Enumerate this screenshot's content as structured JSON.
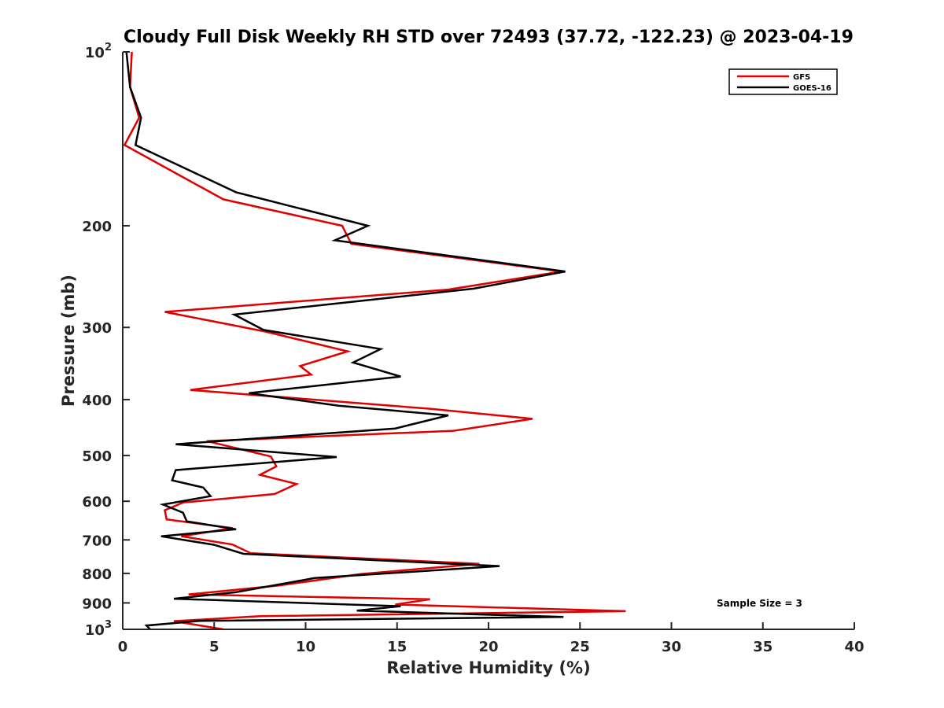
{
  "chart_data": {
    "type": "line",
    "title": "Cloudy Full Disk Weekly RH STD over 72493 (37.72, -122.23) @ 2023-04-19",
    "xlabel": "Relative Humidity (%)",
    "ylabel": "Pressure (mb)",
    "xlim": [
      0,
      40
    ],
    "ylim": [
      100,
      1000
    ],
    "y_scale": "log",
    "y_reversed": true,
    "xticks": [
      0,
      5,
      10,
      15,
      20,
      25,
      30,
      35,
      40
    ],
    "yticks": [
      {
        "value": 100,
        "label": "10",
        "sup": "2"
      },
      {
        "value": 200,
        "label": "200",
        "sup": ""
      },
      {
        "value": 300,
        "label": "300",
        "sup": ""
      },
      {
        "value": 400,
        "label": "400",
        "sup": ""
      },
      {
        "value": 500,
        "label": "500",
        "sup": ""
      },
      {
        "value": 600,
        "label": "600",
        "sup": ""
      },
      {
        "value": 700,
        "label": "700",
        "sup": ""
      },
      {
        "value": 800,
        "label": "800",
        "sup": ""
      },
      {
        "value": 900,
        "label": "900",
        "sup": ""
      },
      {
        "value": 1000,
        "label": "10",
        "sup": "3"
      }
    ],
    "grid": false,
    "legend_position": "top-right",
    "annotation": "Sample Size = 3",
    "series": [
      {
        "name": "GFS",
        "color": "#e00000",
        "points": [
          [
            0.5,
            100
          ],
          [
            0.4,
            115
          ],
          [
            0.9,
            130
          ],
          [
            0.1,
            145
          ],
          [
            5.5,
            180
          ],
          [
            12.0,
            200
          ],
          [
            12.5,
            215
          ],
          [
            24.0,
            240
          ],
          [
            17.8,
            258
          ],
          [
            2.3,
            282
          ],
          [
            7.8,
            305
          ],
          [
            12.3,
            330
          ],
          [
            9.7,
            350
          ],
          [
            10.3,
            362
          ],
          [
            3.7,
            385
          ],
          [
            16.8,
            415
          ],
          [
            22.4,
            432
          ],
          [
            18.1,
            453
          ],
          [
            4.6,
            472
          ],
          [
            8.1,
            502
          ],
          [
            8.4,
            522
          ],
          [
            7.5,
            540
          ],
          [
            9.5,
            560
          ],
          [
            8.3,
            583
          ],
          [
            3.3,
            603
          ],
          [
            2.3,
            622
          ],
          [
            2.4,
            645
          ],
          [
            6.0,
            668
          ],
          [
            3.2,
            690
          ],
          [
            6.0,
            713
          ],
          [
            7.0,
            738
          ],
          [
            19.5,
            770
          ],
          [
            13.0,
            802
          ],
          [
            8.5,
            840
          ],
          [
            3.6,
            870
          ],
          [
            16.8,
            887
          ],
          [
            14.9,
            906
          ],
          [
            27.5,
            930
          ],
          [
            7.5,
            949
          ],
          [
            2.8,
            968
          ],
          [
            5.5,
            1000
          ]
        ]
      },
      {
        "name": "GOES-16",
        "color": "#000000",
        "points": [
          [
            0.2,
            100
          ],
          [
            0.4,
            115
          ],
          [
            1.0,
            130
          ],
          [
            0.7,
            145
          ],
          [
            6.2,
            175
          ],
          [
            13.4,
            200
          ],
          [
            11.6,
            212
          ],
          [
            24.2,
            240
          ],
          [
            19.2,
            257
          ],
          [
            6.1,
            285
          ],
          [
            7.7,
            303
          ],
          [
            14.1,
            327
          ],
          [
            12.6,
            345
          ],
          [
            15.2,
            365
          ],
          [
            6.9,
            390
          ],
          [
            11.8,
            410
          ],
          [
            17.8,
            426
          ],
          [
            14.9,
            449
          ],
          [
            2.9,
            478
          ],
          [
            11.7,
            503
          ],
          [
            2.9,
            530
          ],
          [
            2.7,
            552
          ],
          [
            4.4,
            568
          ],
          [
            4.8,
            588
          ],
          [
            2.2,
            608
          ],
          [
            3.3,
            628
          ],
          [
            3.5,
            650
          ],
          [
            6.2,
            671
          ],
          [
            2.1,
            690
          ],
          [
            5.0,
            714
          ],
          [
            6.6,
            740
          ],
          [
            20.6,
            777
          ],
          [
            10.5,
            815
          ],
          [
            6.2,
            862
          ],
          [
            2.8,
            885
          ],
          [
            15.2,
            912
          ],
          [
            12.8,
            928
          ],
          [
            24.1,
            952
          ],
          [
            4.2,
            967
          ],
          [
            1.3,
            985
          ],
          [
            1.5,
            1000
          ]
        ]
      }
    ]
  }
}
